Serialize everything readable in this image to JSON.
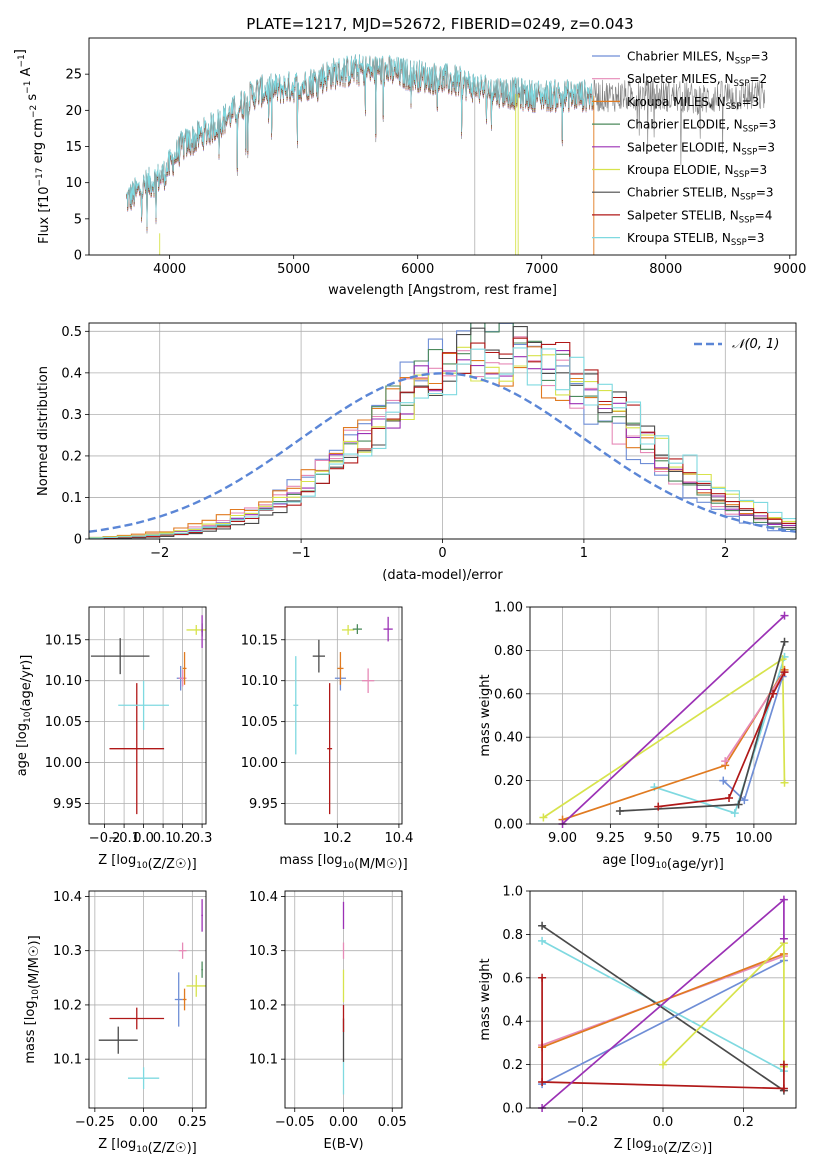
{
  "figure": {
    "title": "PLATE=1217, MJD=52672, FIBERID=0249, z=0.043"
  },
  "legend_series": [
    {
      "label": "Chabrier MILES, N",
      "sub": "SSP",
      "tail": "=3",
      "color": "#6F8ED6"
    },
    {
      "label": "Salpeter MILES, N",
      "sub": "SSP",
      "tail": "=2",
      "color": "#E68AB7"
    },
    {
      "label": "Kroupa MILES, N",
      "sub": "SSP",
      "tail": "=3",
      "color": "#E07A20"
    },
    {
      "label": "Chabrier ELODIE, N",
      "sub": "SSP",
      "tail": "=3",
      "color": "#4C8A5C"
    },
    {
      "label": "Salpeter ELODIE, N",
      "sub": "SSP",
      "tail": "=3",
      "color": "#9B31B5"
    },
    {
      "label": "Kroupa ELODIE, N",
      "sub": "SSP",
      "tail": "=3",
      "color": "#D7E34C"
    },
    {
      "label": "Chabrier STELIB, N",
      "sub": "SSP",
      "tail": "=3",
      "color": "#4A4A4A"
    },
    {
      "label": "Salpeter STELIB, N",
      "sub": "SSP",
      "tail": "=4",
      "color": "#B01818"
    },
    {
      "label": "Kroupa STELIB, N",
      "sub": "SSP",
      "tail": "=3",
      "color": "#7FD9E0"
    }
  ],
  "chart_data": [
    {
      "id": "spectrum",
      "type": "line",
      "xlabel": "wavelength [Angstrom, rest frame]",
      "ylabel": "Flux [f_λ10^-17 erg cm^-2 s^-1 A^-1]",
      "xlim": [
        3350,
        9050
      ],
      "ylim": [
        0,
        30
      ],
      "xticks": [
        4000,
        5000,
        6000,
        7000,
        8000,
        9000
      ],
      "yticks": [
        0,
        5,
        10,
        15,
        20,
        25
      ],
      "data_color": "#808080",
      "data_range": [
        3650,
        8800
      ],
      "model_range": [
        3650,
        7420
      ],
      "continuum": [
        [
          3650,
          7.5
        ],
        [
          3800,
          9.5
        ],
        [
          3950,
          11
        ],
        [
          4100,
          15
        ],
        [
          4300,
          17
        ],
        [
          4500,
          19.5
        ],
        [
          4700,
          22.5
        ],
        [
          4900,
          23
        ],
        [
          5100,
          23.5
        ],
        [
          5300,
          25
        ],
        [
          5500,
          25.5
        ],
        [
          5700,
          25.5
        ],
        [
          5900,
          25
        ],
        [
          6100,
          24.5
        ],
        [
          6300,
          24
        ],
        [
          6500,
          23
        ],
        [
          6700,
          22.5
        ],
        [
          6900,
          22
        ],
        [
          7100,
          22
        ],
        [
          7400,
          22
        ],
        [
          7700,
          22
        ],
        [
          8000,
          22
        ],
        [
          8300,
          21.5
        ],
        [
          8500,
          22
        ],
        [
          8800,
          22
        ]
      ],
      "gaps": [
        6460,
        6790,
        6810
      ]
    },
    {
      "id": "residuals",
      "type": "step-histogram",
      "xlabel": "(data-model)/error",
      "ylabel": "Normed distribution",
      "xlim": [
        -2.5,
        2.5
      ],
      "ylim": [
        0,
        0.52
      ],
      "xticks": [
        -2,
        -1,
        0,
        1,
        2
      ],
      "yticks": [
        0,
        0.1,
        0.2,
        0.3,
        0.4,
        0.5
      ],
      "bin_width": 0.1,
      "gaussian_label": "𝒩(0, 1)",
      "gaussian_color": "#5B86D6",
      "hist_mean": 0.42,
      "hist_sigma": 0.88
    },
    {
      "id": "age_vs_Z",
      "type": "errorbar",
      "xlabel": "Z [log10(Z/Z☉)]",
      "ylabel": "age  [log10(age/yr)]",
      "xlim": [
        -0.28,
        0.32
      ],
      "ylim": [
        9.925,
        10.19
      ],
      "xticks": [
        -0.2,
        -0.1,
        0.0,
        0.1,
        0.2,
        0.3
      ],
      "yticks": [
        9.95,
        10.0,
        10.05,
        10.1,
        10.15
      ],
      "points": [
        {
          "x": -0.12,
          "xerr": 0.15,
          "y": 10.13,
          "yerr": 0.022,
          "color": "#4A4A4A"
        },
        {
          "x": -0.035,
          "xerr": 0.14,
          "y": 10.017,
          "yerr": 0.08,
          "color": "#B01818"
        },
        {
          "x": 0.0,
          "xerr": 0.13,
          "y": 10.07,
          "yerr": 0.03,
          "color": "#7FD9E0"
        },
        {
          "x": 0.19,
          "xerr": 0.02,
          "y": 10.103,
          "yerr": 0.015,
          "color": "#6F8ED6"
        },
        {
          "x": 0.2,
          "xerr": 0.02,
          "y": 10.103,
          "yerr": 0.01,
          "color": "#E68AB7"
        },
        {
          "x": 0.21,
          "xerr": 0.01,
          "y": 10.115,
          "yerr": 0.02,
          "color": "#E07A20"
        },
        {
          "x": 0.27,
          "xerr": 0.05,
          "y": 10.162,
          "yerr": 0.006,
          "color": "#D7E34C"
        },
        {
          "x": 0.3,
          "xerr": 0.004,
          "y": 10.162,
          "yerr": 0.008,
          "color": "#4C8A5C"
        },
        {
          "x": 0.3,
          "xerr": 0.004,
          "y": 10.16,
          "yerr": 0.02,
          "color": "#9B31B5"
        }
      ]
    },
    {
      "id": "age_vs_mass",
      "type": "errorbar",
      "xlabel": "mass [log10(M/M☉)]",
      "ylabel": "",
      "xlim": [
        10.03,
        10.41
      ],
      "ylim": [
        9.925,
        10.19
      ],
      "xticks": [
        10.2,
        10.4
      ],
      "yticks": [
        9.95,
        10.0,
        10.05,
        10.1,
        10.15
      ],
      "points": [
        {
          "x": 10.065,
          "xerr": 0.008,
          "y": 10.07,
          "yerr": 0.06,
          "color": "#7FD9E0"
        },
        {
          "x": 10.14,
          "xerr": 0.02,
          "y": 10.13,
          "yerr": 0.02,
          "color": "#4A4A4A"
        },
        {
          "x": 10.175,
          "xerr": 0.008,
          "y": 10.017,
          "yerr": 0.08,
          "color": "#B01818"
        },
        {
          "x": 10.21,
          "xerr": 0.018,
          "y": 10.103,
          "yerr": 0.015,
          "color": "#6F8ED6"
        },
        {
          "x": 10.21,
          "xerr": 0.01,
          "y": 10.115,
          "yerr": 0.02,
          "color": "#E07A20"
        },
        {
          "x": 10.235,
          "xerr": 0.02,
          "y": 10.162,
          "yerr": 0.006,
          "color": "#D7E34C"
        },
        {
          "x": 10.265,
          "xerr": 0.015,
          "y": 10.163,
          "yerr": 0.006,
          "color": "#4C8A5C"
        },
        {
          "x": 10.3,
          "xerr": 0.02,
          "y": 10.1,
          "yerr": 0.015,
          "color": "#E68AB7"
        },
        {
          "x": 10.365,
          "xerr": 0.015,
          "y": 10.163,
          "yerr": 0.015,
          "color": "#9B31B5"
        }
      ]
    },
    {
      "id": "weight_vs_age",
      "type": "line",
      "xlabel": "age  [log10(age/yr)]",
      "ylabel": "mass weight",
      "xlim": [
        8.83,
        10.22
      ],
      "ylim": [
        0,
        1.0
      ],
      "xticks": [
        9.0,
        9.25,
        9.5,
        9.75,
        10.0
      ],
      "yticks": [
        0.0,
        0.2,
        0.4,
        0.6,
        0.8,
        1.0
      ],
      "series": [
        {
          "color": "#7FD9E0",
          "points": [
            [
              9.48,
              0.17
            ],
            [
              9.9,
              0.05
            ],
            [
              10.16,
              0.77
            ]
          ]
        },
        {
          "color": "#D7E34C",
          "points": [
            [
              8.9,
              0.03
            ],
            [
              10.15,
              0.76
            ],
            [
              10.16,
              0.19
            ]
          ]
        },
        {
          "color": "#E07A20",
          "points": [
            [
              9.0,
              0.02
            ],
            [
              9.85,
              0.27
            ],
            [
              10.16,
              0.71
            ]
          ]
        },
        {
          "color": "#6F8ED6",
          "points": [
            [
              9.84,
              0.2
            ],
            [
              9.95,
              0.11
            ],
            [
              10.15,
              0.68
            ]
          ]
        },
        {
          "color": "#E68AB7",
          "points": [
            [
              9.85,
              0.29
            ],
            [
              10.16,
              0.7
            ]
          ]
        },
        {
          "color": "#4A4A4A",
          "points": [
            [
              9.3,
              0.06
            ],
            [
              9.92,
              0.09
            ],
            [
              10.16,
              0.84
            ]
          ]
        },
        {
          "color": "#B01818",
          "points": [
            [
              9.5,
              0.08
            ],
            [
              9.87,
              0.12
            ],
            [
              10.1,
              0.6
            ],
            [
              10.16,
              0.7
            ]
          ]
        },
        {
          "color": "#9B31B5",
          "points": [
            [
              9.0,
              0.0
            ],
            [
              10.16,
              0.96
            ]
          ]
        }
      ]
    },
    {
      "id": "mass_vs_Z",
      "type": "errorbar",
      "xlabel": "Z [log10(Z/Z☉)]",
      "ylabel": "mass [log10(M/M☉)]",
      "xlim": [
        -0.28,
        0.32
      ],
      "ylim": [
        10.01,
        10.41
      ],
      "xticks": [
        -0.25,
        0.0,
        0.25
      ],
      "yticks": [
        10.1,
        10.2,
        10.3,
        10.4
      ],
      "points": [
        {
          "x": -0.13,
          "xerr": 0.1,
          "y": 10.135,
          "yerr": 0.025,
          "color": "#4A4A4A"
        },
        {
          "x": -0.035,
          "xerr": 0.14,
          "y": 10.175,
          "yerr": 0.02,
          "color": "#B01818"
        },
        {
          "x": 0.0,
          "xerr": 0.08,
          "y": 10.065,
          "yerr": 0.02,
          "color": "#7FD9E0"
        },
        {
          "x": 0.18,
          "xerr": 0.02,
          "y": 10.21,
          "yerr": 0.05,
          "color": "#6F8ED6"
        },
        {
          "x": 0.2,
          "xerr": 0.02,
          "y": 10.3,
          "yerr": 0.015,
          "color": "#E68AB7"
        },
        {
          "x": 0.21,
          "xerr": 0.01,
          "y": 10.21,
          "yerr": 0.02,
          "color": "#E07A20"
        },
        {
          "x": 0.27,
          "xerr": 0.05,
          "y": 10.235,
          "yerr": 0.02,
          "color": "#D7E34C"
        },
        {
          "x": 0.3,
          "xerr": 0.004,
          "y": 10.265,
          "yerr": 0.015,
          "color": "#4C8A5C"
        },
        {
          "x": 0.3,
          "xerr": 0.004,
          "y": 10.365,
          "yerr": 0.03,
          "color": "#9B31B5"
        }
      ]
    },
    {
      "id": "mass_vs_EBV",
      "type": "errorbar",
      "xlabel": "E(B-V)",
      "ylabel": "",
      "xlim": [
        -0.06,
        0.06
      ],
      "ylim": [
        10.01,
        10.41
      ],
      "xticks": [
        -0.05,
        0.0,
        0.05
      ],
      "yticks": [
        10.1,
        10.2,
        10.3,
        10.4
      ],
      "points": [
        {
          "x": 0.0,
          "xerr": 0.0,
          "y": 10.065,
          "yerr": 0.03,
          "color": "#7FD9E0"
        },
        {
          "x": 0.0,
          "xerr": 0.0,
          "y": 10.135,
          "yerr": 0.04,
          "color": "#4A4A4A"
        },
        {
          "x": 0.0,
          "xerr": 0.0,
          "y": 10.175,
          "yerr": 0.025,
          "color": "#B01818"
        },
        {
          "x": 0.0,
          "xerr": 0.0,
          "y": 10.235,
          "yerr": 0.03,
          "color": "#D7E34C"
        },
        {
          "x": 0.0,
          "xerr": 0.0,
          "y": 10.3,
          "yerr": 0.015,
          "color": "#E68AB7"
        },
        {
          "x": 0.0,
          "xerr": 0.0,
          "y": 10.365,
          "yerr": 0.025,
          "color": "#9B31B5"
        }
      ]
    },
    {
      "id": "weight_vs_Z",
      "type": "line",
      "xlabel": "Z [log10(Z/Z☉)]",
      "ylabel": "mass weight",
      "xlim": [
        -0.33,
        0.33
      ],
      "ylim": [
        0,
        1.0
      ],
      "xticks": [
        -0.2,
        0.0,
        0.2
      ],
      "yticks": [
        0.0,
        0.2,
        0.4,
        0.6,
        0.8,
        1.0
      ],
      "series": [
        {
          "color": "#7FD9E0",
          "points": [
            [
              -0.3,
              0.77
            ],
            [
              0.3,
              0.17
            ]
          ]
        },
        {
          "color": "#4A4A4A",
          "points": [
            [
              -0.3,
              0.84
            ],
            [
              0.3,
              0.08
            ]
          ]
        },
        {
          "color": "#6F8ED6",
          "points": [
            [
              -0.3,
              0.11
            ],
            [
              0.3,
              0.68
            ]
          ]
        },
        {
          "color": "#E68AB7",
          "points": [
            [
              -0.3,
              0.29
            ],
            [
              0.3,
              0.7
            ]
          ]
        },
        {
          "color": "#E07A20",
          "points": [
            [
              -0.3,
              0.28
            ],
            [
              0.3,
              0.71
            ]
          ]
        },
        {
          "color": "#D7E34C",
          "points": [
            [
              0.0,
              0.2
            ],
            [
              0.3,
              0.76
            ],
            [
              0.3,
              0.19
            ]
          ]
        },
        {
          "color": "#B01818",
          "points": [
            [
              -0.3,
              0.6
            ],
            [
              -0.3,
              0.12
            ],
            [
              0.3,
              0.09
            ],
            [
              0.3,
              0.2
            ]
          ]
        },
        {
          "color": "#9B31B5",
          "points": [
            [
              -0.3,
              0.0
            ],
            [
              0.3,
              0.96
            ],
            [
              0.3,
              0.78
            ]
          ]
        }
      ]
    }
  ]
}
